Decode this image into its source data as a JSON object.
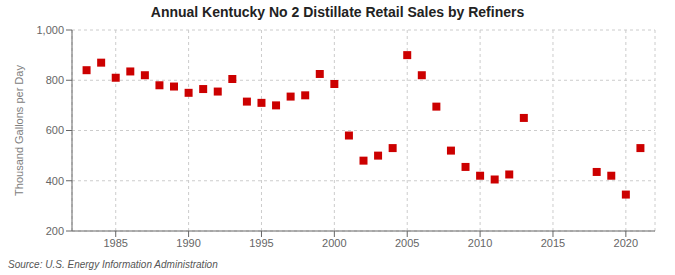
{
  "chart_data": {
    "type": "scatter",
    "title": "Annual Kentucky No 2 Distillate Retail Sales by Refiners",
    "ylabel": "Thousand Gallons per Day",
    "annotations": [
      "Source: U.S. Energy Information Administration"
    ],
    "x": [
      1983,
      1984,
      1985,
      1986,
      1987,
      1988,
      1989,
      1990,
      1991,
      1992,
      1993,
      1994,
      1995,
      1996,
      1997,
      1998,
      1999,
      2000,
      2001,
      2002,
      2003,
      2004,
      2005,
      2006,
      2007,
      2008,
      2009,
      2010,
      2011,
      2012,
      2013,
      2018,
      2019,
      2020,
      2021
    ],
    "values": [
      840,
      870,
      810,
      835,
      820,
      780,
      775,
      750,
      765,
      755,
      805,
      715,
      710,
      700,
      735,
      740,
      825,
      785,
      580,
      480,
      500,
      530,
      900,
      820,
      695,
      520,
      455,
      420,
      405,
      425,
      650,
      435,
      420,
      345,
      530
    ],
    "color": "#cc0000",
    "marker": "square",
    "xlim": [
      1982,
      2022
    ],
    "ylim": [
      200,
      1000
    ],
    "xticks": [
      1985,
      1990,
      1995,
      2000,
      2005,
      2010,
      2015,
      2020
    ],
    "yticks": [
      200,
      400,
      600,
      800,
      {
        "value": 1000,
        "label": "1,000"
      }
    ],
    "grid": true
  }
}
